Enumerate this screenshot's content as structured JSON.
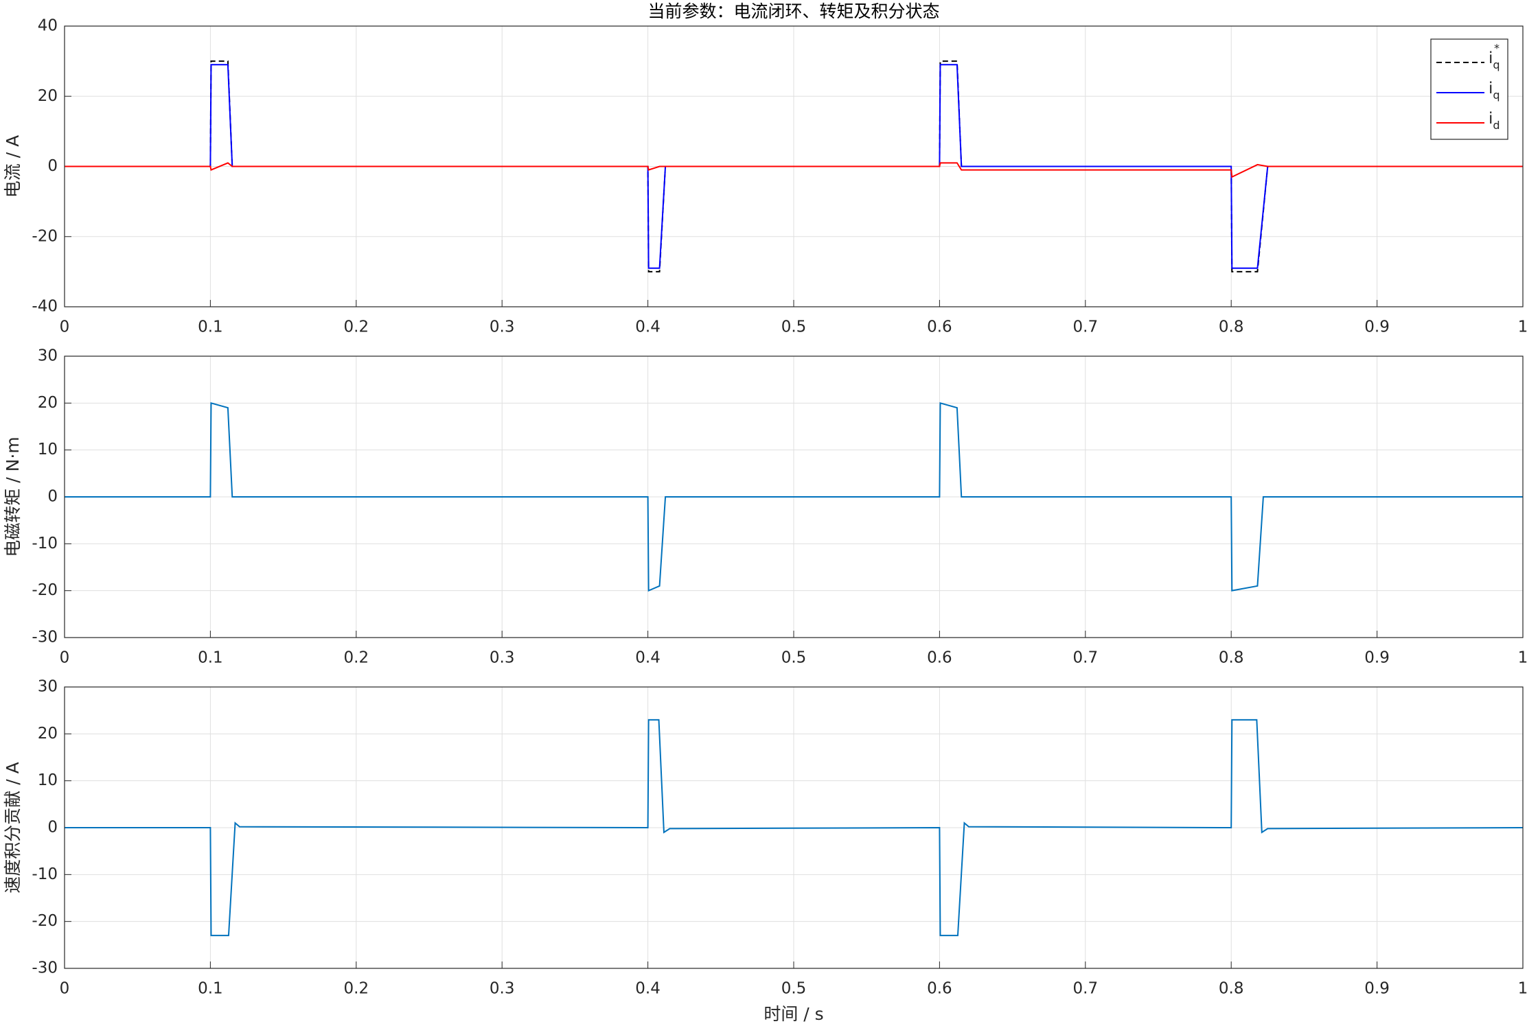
{
  "chart_data": [
    {
      "type": "line",
      "title": "当前参数：电流闭环、转矩及积分状态",
      "y_label": "电流 / A",
      "x": [
        0,
        0.1,
        0.1005,
        0.112,
        0.115,
        0.4,
        0.4005,
        0.408,
        0.412,
        0.6,
        0.6005,
        0.612,
        0.615,
        0.8,
        0.8005,
        0.818,
        0.825,
        1
      ],
      "series": [
        {
          "name": "i",
          "sub": "q",
          "sup": "*",
          "color": "#000000",
          "dash": true,
          "values": [
            0,
            0,
            30,
            30,
            0,
            0,
            -30,
            -30,
            0,
            0,
            30,
            30,
            0,
            0,
            -30,
            -30,
            0,
            0
          ]
        },
        {
          "name": "i",
          "sub": "q",
          "color": "#0000ff",
          "values": [
            0,
            0,
            29,
            29,
            0,
            0,
            -29,
            -29,
            0,
            0,
            29,
            29,
            0,
            0,
            -29,
            -29,
            0,
            0
          ]
        },
        {
          "name": "i",
          "sub": "d",
          "color": "#ff0000",
          "values": [
            0,
            0,
            -1,
            1,
            0,
            0,
            -1,
            0,
            0,
            0,
            1,
            1,
            -1,
            -1,
            -3,
            0.5,
            0,
            0
          ]
        }
      ],
      "xlim": [
        0,
        1
      ],
      "xticks": [
        0,
        0.1,
        0.2,
        0.3,
        0.4,
        0.5,
        0.6,
        0.7,
        0.8,
        0.9,
        1
      ],
      "ylim": [
        -40,
        40
      ],
      "yticks": [
        -40,
        -20,
        0,
        20,
        40
      ],
      "grid": true,
      "legend": "upper-right"
    },
    {
      "type": "line",
      "y_label": "电磁转矩 / N·m",
      "x": [
        0,
        0.1,
        0.1005,
        0.112,
        0.115,
        0.4,
        0.4005,
        0.408,
        0.412,
        0.6,
        0.6005,
        0.612,
        0.615,
        0.8,
        0.8005,
        0.818,
        0.822,
        1
      ],
      "series": [
        {
          "color": "#0072bd",
          "values": [
            0,
            0,
            20,
            19,
            0,
            0,
            -20,
            -19,
            0,
            0,
            20,
            19,
            0,
            0,
            -20,
            -19,
            0,
            0
          ]
        }
      ],
      "xlim": [
        0,
        1
      ],
      "xticks": [
        0,
        0.1,
        0.2,
        0.3,
        0.4,
        0.5,
        0.6,
        0.7,
        0.8,
        0.9,
        1
      ],
      "ylim": [
        -30,
        30
      ],
      "yticks": [
        -30,
        -20,
        -10,
        0,
        10,
        20,
        30
      ],
      "grid": true
    },
    {
      "type": "line",
      "y_label": "速度积分贡献 / A",
      "x_label": "时间 / s",
      "x": [
        0,
        0.1,
        0.1005,
        0.1125,
        0.117,
        0.12,
        0.4,
        0.4005,
        0.4075,
        0.411,
        0.415,
        0.6,
        0.6005,
        0.6125,
        0.617,
        0.62,
        0.8,
        0.8005,
        0.8175,
        0.821,
        0.825,
        1
      ],
      "series": [
        {
          "color": "#0072bd",
          "values": [
            0,
            0,
            -23,
            -23,
            1,
            0.2,
            0,
            23,
            23,
            -1,
            -0.2,
            0,
            -23,
            -23,
            1,
            0.2,
            0,
            23,
            23,
            -1,
            -0.2,
            0
          ]
        }
      ],
      "xlim": [
        0,
        1
      ],
      "xticks": [
        0,
        0.1,
        0.2,
        0.3,
        0.4,
        0.5,
        0.6,
        0.7,
        0.8,
        0.9,
        1
      ],
      "ylim": [
        -30,
        30
      ],
      "yticks": [
        -30,
        -20,
        -10,
        0,
        10,
        20,
        30
      ],
      "grid": true
    }
  ]
}
